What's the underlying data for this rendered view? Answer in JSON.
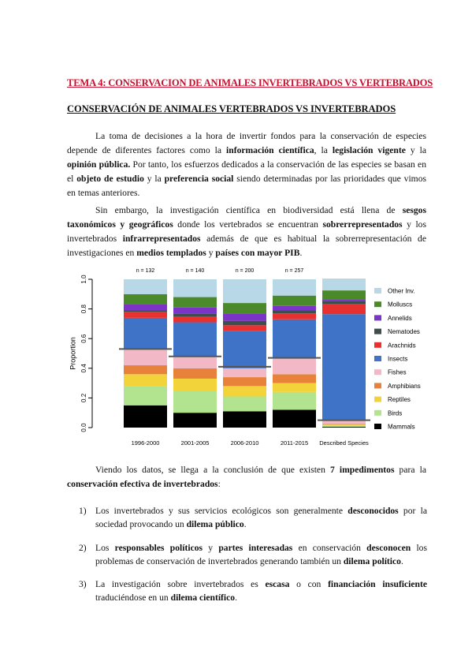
{
  "header": {
    "topic_title": "TEMA 4: CONSERVACION DE ANIMALES INVERTEBRADOS VS VERTEBRADOS",
    "section_title": "CONSERVACIÓN DE ANIMALES VERTEBRADOS VS INVERTEBRADOS"
  },
  "para1": {
    "t1": "La toma de decisiones a la hora de invertir fondos para la conservación de especies depende de diferentes factores como la ",
    "b1": "información científica",
    "t2": ", la ",
    "b2": "legislación vigente",
    "t3": " y la ",
    "b3": "opinión pública.",
    "t4": " Por tanto, los esfuerzos dedicados a la conservación de las especies se basan en el ",
    "b4": "objeto de estudio",
    "t5": " y la ",
    "b5": "preferencia social",
    "t6": " siendo determinadas por las prioridades que vimos en temas anteriores."
  },
  "para2": {
    "t1": "Sin embargo, la investigación científica en biodiversidad está llena de ",
    "b1": "sesgos taxonómicos y geográficos",
    "t2": " donde los vertebrados se encuentran ",
    "b2": "sobrerrepresentados",
    "t3": " y los invertebrados ",
    "b3": "infrarrepresentados",
    "t4": " además de que es habitual la sobrerrepresentación de investigaciones en ",
    "b4": "medios templados",
    "t5": " y ",
    "b5": "países con mayor PIB",
    "t6": "."
  },
  "chart_data": {
    "type": "bar",
    "stacked": true,
    "ylabel": "Proportion",
    "ylim": [
      0,
      1
    ],
    "yticks": [
      "0.0",
      "0.2",
      "0.4",
      "0.6",
      "0.8",
      "1.0"
    ],
    "categories": [
      "1996-2000",
      "2001-2005",
      "2006-2010",
      "2011-2015",
      "Described Species"
    ],
    "n_labels": [
      "n = 132",
      "n = 140",
      "n = 200",
      "n = 257",
      ""
    ],
    "vertebrate_share": [
      0.53,
      0.48,
      0.41,
      0.47,
      0.05
    ],
    "legend_position": "right",
    "series": [
      {
        "name": "Mammals",
        "color": "#000000",
        "values": [
          0.15,
          0.1,
          0.11,
          0.12,
          0.005
        ]
      },
      {
        "name": "Birds",
        "color": "#b2e38e",
        "values": [
          0.13,
          0.15,
          0.1,
          0.12,
          0.01
        ]
      },
      {
        "name": "Reptiles",
        "color": "#f2d43a",
        "values": [
          0.08,
          0.08,
          0.07,
          0.06,
          0.005
        ]
      },
      {
        "name": "Amphibians",
        "color": "#e8823a",
        "values": [
          0.06,
          0.07,
          0.06,
          0.06,
          0.005
        ]
      },
      {
        "name": "Fishes",
        "color": "#f2b8c6",
        "values": [
          0.11,
          0.08,
          0.06,
          0.11,
          0.02
        ]
      },
      {
        "name": "Insects",
        "color": "#3e73c8",
        "values": [
          0.21,
          0.23,
          0.25,
          0.26,
          0.72
        ]
      },
      {
        "name": "Arachnids",
        "color": "#e8302e",
        "values": [
          0.04,
          0.04,
          0.04,
          0.04,
          0.07
        ]
      },
      {
        "name": "Nematodes",
        "color": "#3e4e4e",
        "values": [
          0.01,
          0.02,
          0.03,
          0.02,
          0.02
        ]
      },
      {
        "name": "Annelids",
        "color": "#7b33c8",
        "values": [
          0.04,
          0.04,
          0.05,
          0.03,
          0.01
        ]
      },
      {
        "name": "Molluscs",
        "color": "#4a8a2a",
        "values": [
          0.07,
          0.07,
          0.07,
          0.07,
          0.06
        ]
      },
      {
        "name": "Other Inv.",
        "color": "#b8d8e8",
        "values": [
          0.1,
          0.12,
          0.16,
          0.11,
          0.08
        ]
      }
    ]
  },
  "para3": {
    "t1": "Viendo los datos, se llega a la conclusión de que existen ",
    "b1": "7 impedimentos",
    "t2": " para la ",
    "b2": "conservación efectiva de invertebrados",
    "t3": ":"
  },
  "list": [
    {
      "num": "1)",
      "t1": "Los invertebrados y sus servicios ecológicos son generalmente ",
      "b1": "desconocidos",
      "t2": " por la sociedad provocando un ",
      "b2": "dilema público",
      "t3": "."
    },
    {
      "num": "2)",
      "t1": "Los ",
      "b1": "responsables políticos",
      "t2": " y ",
      "b2": "partes interesadas",
      "t3": " en conservación ",
      "b3": "desconocen",
      "t4": " los problemas de conservación de invertebrados generando también un ",
      "b4": "dilema político",
      "t5": "."
    },
    {
      "num": "3)",
      "t1": "La investigación sobre invertebrados es ",
      "b1": "escasa",
      "t2": " o con ",
      "b2": "financiación insuficiente",
      "t3": " traduciéndose en un ",
      "b3": "dilema científico",
      "t4": "."
    }
  ]
}
